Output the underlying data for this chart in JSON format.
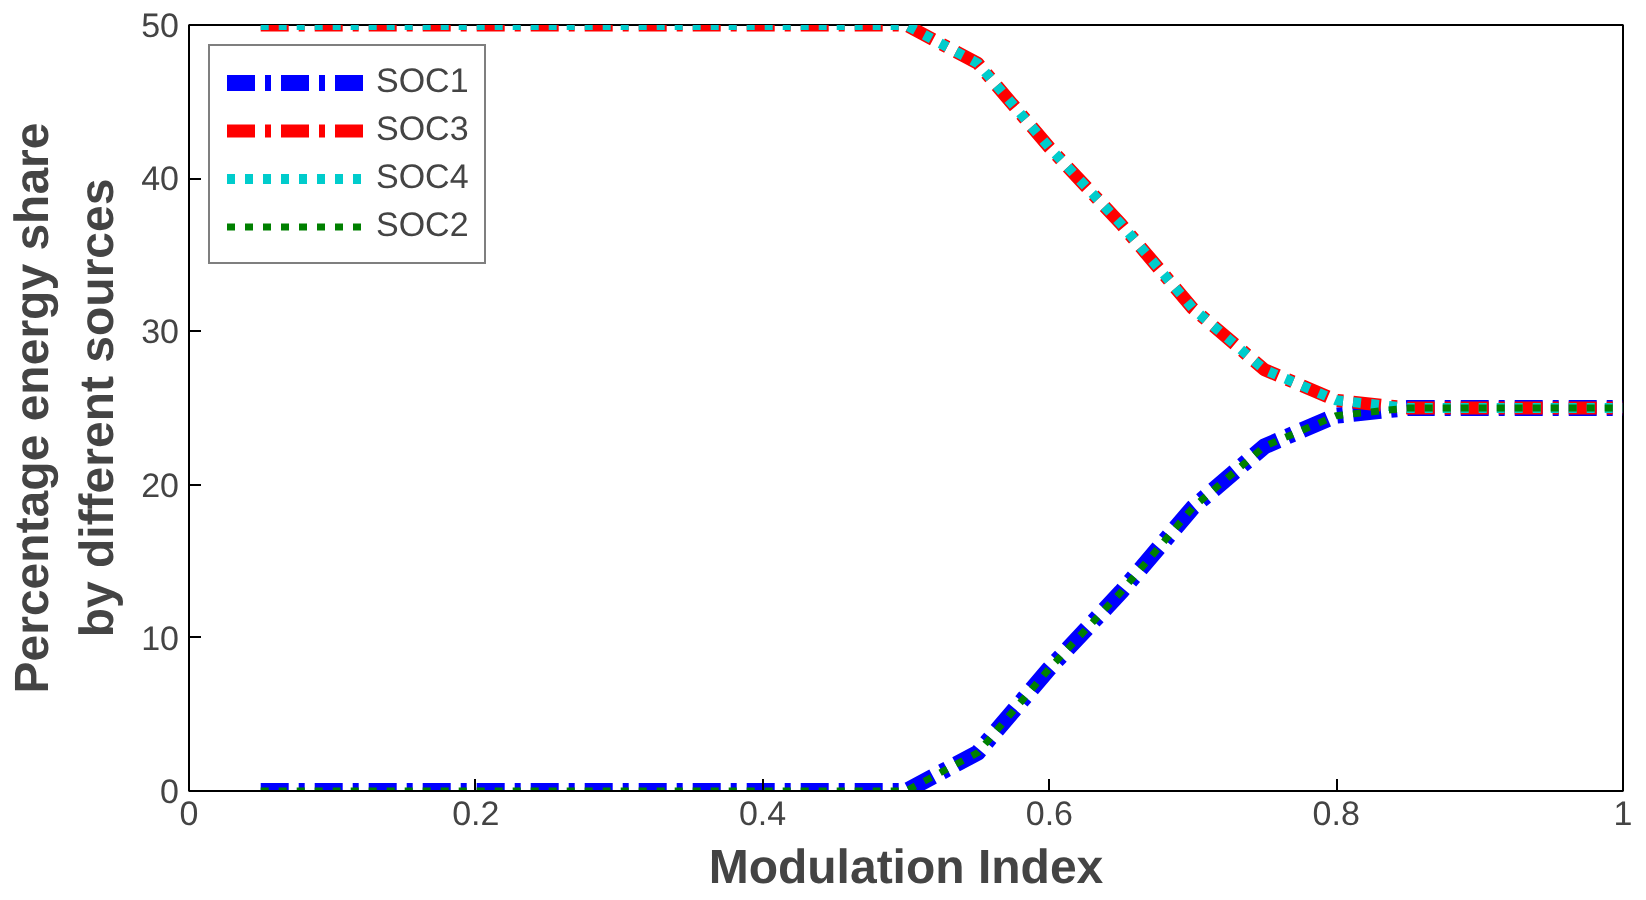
{
  "chart_data": {
    "type": "line",
    "xlabel": "Modulation Index",
    "ylabel": "Percentage energy share\nby different sources",
    "x": [
      0.05,
      0.1,
      0.15,
      0.2,
      0.25,
      0.3,
      0.35,
      0.4,
      0.45,
      0.5,
      0.55,
      0.6,
      0.65,
      0.7,
      0.75,
      0.8,
      0.85,
      0.9,
      0.95,
      1.0
    ],
    "xlim": [
      0,
      1
    ],
    "ylim": [
      0,
      50
    ],
    "xticks": [
      0,
      0.2,
      0.4,
      0.6,
      0.8,
      1
    ],
    "yticks": [
      0,
      10,
      20,
      30,
      40,
      50
    ],
    "grid": false,
    "legend": "top left",
    "marker": "none",
    "series": [
      {
        "name": "SOC1",
        "color": "#0000ff",
        "line_style": "dashdot",
        "values": [
          0,
          0,
          0,
          0,
          0,
          0,
          0,
          0,
          0,
          0,
          2.5,
          8,
          13,
          18.5,
          22.5,
          24.5,
          25,
          25,
          25,
          25
        ]
      },
      {
        "name": "SOC3",
        "color": "#ff0000",
        "line_style": "dashdot",
        "values": [
          50,
          50,
          50,
          50,
          50,
          50,
          50,
          50,
          50,
          50,
          47.5,
          42,
          37,
          31.5,
          27.5,
          25.5,
          25,
          25,
          25,
          25
        ]
      },
      {
        "name": "SOC4",
        "color": "#00cccc",
        "line_style": "dotted",
        "values": [
          50,
          50,
          50,
          50,
          50,
          50,
          50,
          50,
          50,
          50,
          47.5,
          42,
          37,
          31.5,
          27.5,
          25.5,
          25,
          25,
          25,
          25
        ]
      },
      {
        "name": "SOC2",
        "color": "#008000",
        "line_style": "dotted",
        "values": [
          0,
          0,
          0,
          0,
          0,
          0,
          0,
          0,
          0,
          0,
          2.5,
          8,
          13,
          18.5,
          22.5,
          24.5,
          25,
          25,
          25,
          25
        ]
      }
    ]
  }
}
